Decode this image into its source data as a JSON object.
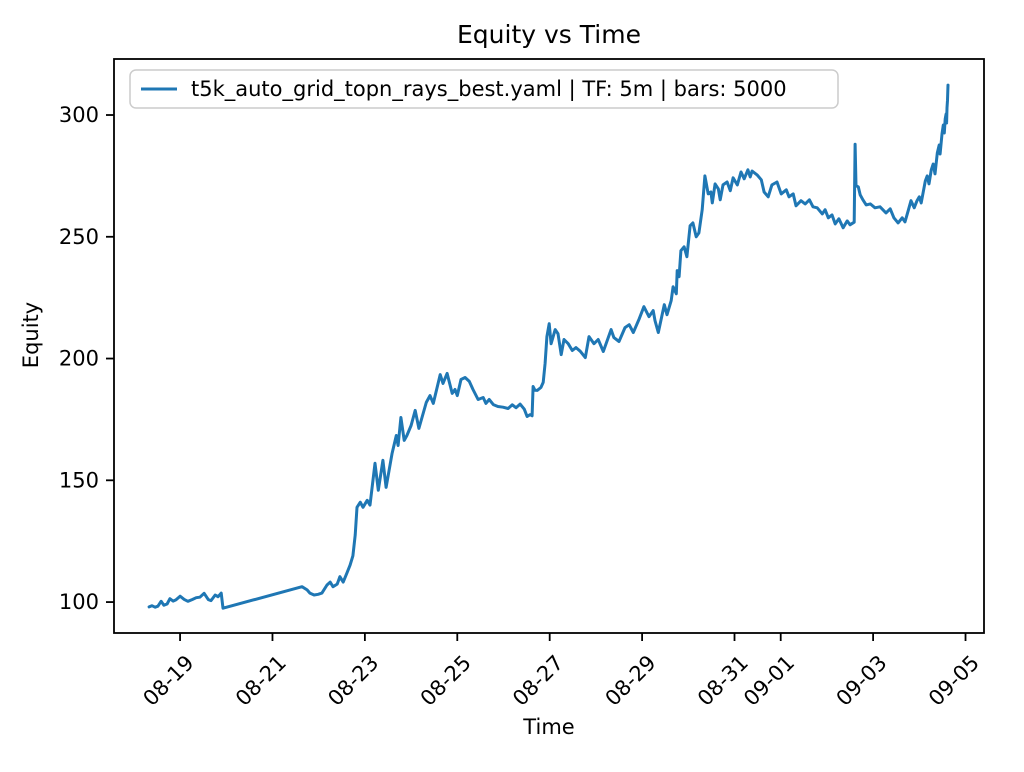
{
  "figure": {
    "background": "#ffffff",
    "accent_color": "#1f77b4",
    "spine_color": "#000000"
  },
  "chart_data": {
    "type": "line",
    "title": "Equity vs Time",
    "xlabel": "Time",
    "ylabel": "Equity",
    "grid": false,
    "legend": {
      "position": "upper left",
      "entries": [
        {
          "label": "t5k_auto_grid_topn_rays_best.yaml | TF: 5m | bars: 5000",
          "color": "#1f77b4"
        }
      ]
    },
    "x_axis": {
      "encoding": "days relative to 08-18 00:00; tick labels are month-day dates",
      "lim": [
        -0.43,
        18.4
      ],
      "ticks": [
        {
          "x": 1,
          "label": "08-19"
        },
        {
          "x": 3,
          "label": "08-21"
        },
        {
          "x": 5,
          "label": "08-23"
        },
        {
          "x": 7,
          "label": "08-25"
        },
        {
          "x": 9,
          "label": "08-27"
        },
        {
          "x": 11,
          "label": "08-29"
        },
        {
          "x": 13,
          "label": "08-31"
        },
        {
          "x": 14,
          "label": "09-01"
        },
        {
          "x": 16,
          "label": "09-03"
        },
        {
          "x": 18,
          "label": "09-05"
        }
      ]
    },
    "y_axis": {
      "lim": [
        87.3,
        323.0
      ],
      "ticks": [
        {
          "y": 100,
          "label": "100"
        },
        {
          "y": 150,
          "label": "150"
        },
        {
          "y": 200,
          "label": "200"
        },
        {
          "y": 250,
          "label": "250"
        },
        {
          "y": 300,
          "label": "300"
        }
      ]
    },
    "series": [
      {
        "name": "t5k_auto_grid_topn_rays_best.yaml | TF: 5m | bars: 5000",
        "color": "#1f77b4",
        "points": [
          [
            0.33,
            98.0
          ],
          [
            0.39,
            98.5
          ],
          [
            0.46,
            97.9
          ],
          [
            0.52,
            98.3
          ],
          [
            0.59,
            100.3
          ],
          [
            0.65,
            98.7
          ],
          [
            0.72,
            99.2
          ],
          [
            0.78,
            101.4
          ],
          [
            0.85,
            100.4
          ],
          [
            0.91,
            100.9
          ],
          [
            1.0,
            102.4
          ],
          [
            1.09,
            101.1
          ],
          [
            1.17,
            100.3
          ],
          [
            1.26,
            101.0
          ],
          [
            1.35,
            101.8
          ],
          [
            1.43,
            102.0
          ],
          [
            1.52,
            103.6
          ],
          [
            1.61,
            101.0
          ],
          [
            1.67,
            100.6
          ],
          [
            1.76,
            102.9
          ],
          [
            1.82,
            102.2
          ],
          [
            1.89,
            103.7
          ],
          [
            1.93,
            97.5
          ],
          [
            3.64,
            106.3
          ],
          [
            3.75,
            105.0
          ],
          [
            3.81,
            103.7
          ],
          [
            3.9,
            102.9
          ],
          [
            3.99,
            103.2
          ],
          [
            4.07,
            103.7
          ],
          [
            4.18,
            107.0
          ],
          [
            4.25,
            108.2
          ],
          [
            4.31,
            106.3
          ],
          [
            4.4,
            107.4
          ],
          [
            4.46,
            110.4
          ],
          [
            4.53,
            108.2
          ],
          [
            4.61,
            111.9
          ],
          [
            4.68,
            115.2
          ],
          [
            4.74,
            119.0
          ],
          [
            4.79,
            127.5
          ],
          [
            4.83,
            138.9
          ],
          [
            4.9,
            141.0
          ],
          [
            4.96,
            138.9
          ],
          [
            5.05,
            141.8
          ],
          [
            5.11,
            139.8
          ],
          [
            5.22,
            157.0
          ],
          [
            5.29,
            145.9
          ],
          [
            5.39,
            158.2
          ],
          [
            5.46,
            147.1
          ],
          [
            5.59,
            161.1
          ],
          [
            5.68,
            168.4
          ],
          [
            5.72,
            164.3
          ],
          [
            5.78,
            175.8
          ],
          [
            5.85,
            166.4
          ],
          [
            5.91,
            168.4
          ],
          [
            6.0,
            172.5
          ],
          [
            6.09,
            178.7
          ],
          [
            6.17,
            171.3
          ],
          [
            6.33,
            182.0
          ],
          [
            6.41,
            184.8
          ],
          [
            6.48,
            181.6
          ],
          [
            6.63,
            193.4
          ],
          [
            6.69,
            189.8
          ],
          [
            6.78,
            193.9
          ],
          [
            6.89,
            185.7
          ],
          [
            6.95,
            187.3
          ],
          [
            7.0,
            184.8
          ],
          [
            7.08,
            191.4
          ],
          [
            7.17,
            192.2
          ],
          [
            7.26,
            190.6
          ],
          [
            7.34,
            187.3
          ],
          [
            7.45,
            183.2
          ],
          [
            7.56,
            184.0
          ],
          [
            7.62,
            181.6
          ],
          [
            7.69,
            183.2
          ],
          [
            7.78,
            181.1
          ],
          [
            7.88,
            180.3
          ],
          [
            7.99,
            180.0
          ],
          [
            8.1,
            179.5
          ],
          [
            8.19,
            181.0
          ],
          [
            8.27,
            179.8
          ],
          [
            8.36,
            181.3
          ],
          [
            8.45,
            179.2
          ],
          [
            8.51,
            176.2
          ],
          [
            8.58,
            177.0
          ],
          [
            8.62,
            176.5
          ],
          [
            8.64,
            188.5
          ],
          [
            8.68,
            187.0
          ],
          [
            8.73,
            186.9
          ],
          [
            8.81,
            188.1
          ],
          [
            8.86,
            190.2
          ],
          [
            8.9,
            198.0
          ],
          [
            8.94,
            209.0
          ],
          [
            8.99,
            214.3
          ],
          [
            9.03,
            206.1
          ],
          [
            9.12,
            211.9
          ],
          [
            9.18,
            210.2
          ],
          [
            9.25,
            201.6
          ],
          [
            9.31,
            207.8
          ],
          [
            9.4,
            206.1
          ],
          [
            9.49,
            203.3
          ],
          [
            9.57,
            204.5
          ],
          [
            9.66,
            203.0
          ],
          [
            9.77,
            200.4
          ],
          [
            9.85,
            209.0
          ],
          [
            9.96,
            206.1
          ],
          [
            10.05,
            207.8
          ],
          [
            10.16,
            202.9
          ],
          [
            10.33,
            211.9
          ],
          [
            10.39,
            208.6
          ],
          [
            10.5,
            207.0
          ],
          [
            10.63,
            212.7
          ],
          [
            10.72,
            213.9
          ],
          [
            10.81,
            210.7
          ],
          [
            10.94,
            216.4
          ],
          [
            11.04,
            221.3
          ],
          [
            11.15,
            217.2
          ],
          [
            11.24,
            219.7
          ],
          [
            11.28,
            215.6
          ],
          [
            11.35,
            210.7
          ],
          [
            11.48,
            222.1
          ],
          [
            11.54,
            218.0
          ],
          [
            11.63,
            223.8
          ],
          [
            11.67,
            229.5
          ],
          [
            11.74,
            226.6
          ],
          [
            11.76,
            236.1
          ],
          [
            11.8,
            233.6
          ],
          [
            11.84,
            244.3
          ],
          [
            11.91,
            245.9
          ],
          [
            11.97,
            241.8
          ],
          [
            12.04,
            254.5
          ],
          [
            12.1,
            255.7
          ],
          [
            12.17,
            250.0
          ],
          [
            12.23,
            251.6
          ],
          [
            12.3,
            261.1
          ],
          [
            12.36,
            275.0
          ],
          [
            12.43,
            267.6
          ],
          [
            12.49,
            268.4
          ],
          [
            12.52,
            263.9
          ],
          [
            12.58,
            271.7
          ],
          [
            12.65,
            269.7
          ],
          [
            12.69,
            265.2
          ],
          [
            12.75,
            271.3
          ],
          [
            12.84,
            272.5
          ],
          [
            12.91,
            268.9
          ],
          [
            12.97,
            274.2
          ],
          [
            13.06,
            271.3
          ],
          [
            13.14,
            276.6
          ],
          [
            13.21,
            273.8
          ],
          [
            13.29,
            277.5
          ],
          [
            13.34,
            274.6
          ],
          [
            13.38,
            277.0
          ],
          [
            13.49,
            275.4
          ],
          [
            13.58,
            273.4
          ],
          [
            13.64,
            268.4
          ],
          [
            13.73,
            266.4
          ],
          [
            13.81,
            271.3
          ],
          [
            13.92,
            272.5
          ],
          [
            14.01,
            267.6
          ],
          [
            14.12,
            269.3
          ],
          [
            14.18,
            266.4
          ],
          [
            14.27,
            267.6
          ],
          [
            14.33,
            262.7
          ],
          [
            14.44,
            264.8
          ],
          [
            14.53,
            263.5
          ],
          [
            14.62,
            265.2
          ],
          [
            14.7,
            262.3
          ],
          [
            14.79,
            261.9
          ],
          [
            14.9,
            259.4
          ],
          [
            14.96,
            261.1
          ],
          [
            15.03,
            257.8
          ],
          [
            15.11,
            259.0
          ],
          [
            15.18,
            255.3
          ],
          [
            15.26,
            257.4
          ],
          [
            15.35,
            253.7
          ],
          [
            15.44,
            256.5
          ],
          [
            15.5,
            254.9
          ],
          [
            15.59,
            256.0
          ],
          [
            15.61,
            288.0
          ],
          [
            15.63,
            271.0
          ],
          [
            15.68,
            270.5
          ],
          [
            15.72,
            267.2
          ],
          [
            15.78,
            265.2
          ],
          [
            15.85,
            263.1
          ],
          [
            15.94,
            263.5
          ],
          [
            16.04,
            261.9
          ],
          [
            16.15,
            262.3
          ],
          [
            16.28,
            259.8
          ],
          [
            16.37,
            261.5
          ],
          [
            16.45,
            257.8
          ],
          [
            16.54,
            255.7
          ],
          [
            16.63,
            257.8
          ],
          [
            16.69,
            256.1
          ],
          [
            16.76,
            260.7
          ],
          [
            16.82,
            264.8
          ],
          [
            16.89,
            261.9
          ],
          [
            16.95,
            264.8
          ],
          [
            17.0,
            266.4
          ],
          [
            17.04,
            263.9
          ],
          [
            17.13,
            272.9
          ],
          [
            17.17,
            275.0
          ],
          [
            17.21,
            271.7
          ],
          [
            17.26,
            277.5
          ],
          [
            17.3,
            279.9
          ],
          [
            17.34,
            275.8
          ],
          [
            17.39,
            284.4
          ],
          [
            17.43,
            287.7
          ],
          [
            17.45,
            284.0
          ],
          [
            17.49,
            292.2
          ],
          [
            17.52,
            295.9
          ],
          [
            17.54,
            292.6
          ],
          [
            17.56,
            298.4
          ],
          [
            17.58,
            300.4
          ],
          [
            17.59,
            296.7
          ],
          [
            17.6,
            302.9
          ],
          [
            17.61,
            306.1
          ],
          [
            17.62,
            312.3
          ]
        ]
      }
    ]
  }
}
